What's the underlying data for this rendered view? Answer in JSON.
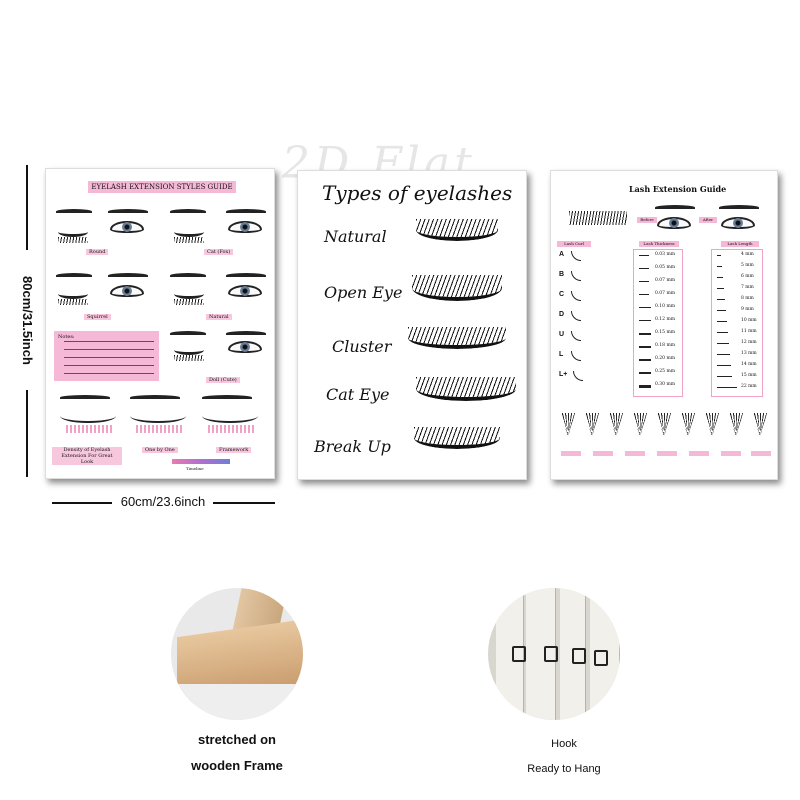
{
  "watermark": "2D Flat",
  "dimensions": {
    "height_label": "80cm/31.5inch",
    "width_label": "60cm/23.6inch"
  },
  "panel1": {
    "title": "EYELASH EXTENSION STYLES GUIDE",
    "styles": [
      "Round",
      "Cat (Fox)",
      "Squirrel",
      "Natural",
      "Doll (Cute)"
    ],
    "notes_label": "Notes:",
    "bottom_labels": [
      "Density of Eyelash Extension For Great Look",
      "One by One",
      "Framework"
    ],
    "timeline_label": "Timeline"
  },
  "panel2": {
    "title": "Types of eyelashes",
    "types": [
      "Natural",
      "Open Eye",
      "Cluster",
      "Cat Eye",
      "Break Up"
    ]
  },
  "panel3": {
    "title": "Lash Extension Guide",
    "before_label": "Before",
    "after_label": "After",
    "column_tags": [
      "Lash Curl",
      "Lash Thickness",
      "Lash Length"
    ],
    "curls": [
      "A",
      "B",
      "C",
      "D",
      "U",
      "L",
      "L+"
    ],
    "thickness": [
      "0.03 mm",
      "0.05 mm",
      "0.07 mm",
      "0.07 mm",
      "0.10 mm",
      "0.12 mm",
      "0.15 mm",
      "0.18 mm",
      "0.20 mm",
      "0.25 mm",
      "0.30 mm"
    ],
    "lengths": [
      "4 mm",
      "5 mm",
      "6 mm",
      "7 mm",
      "8 mm",
      "9 mm",
      "10 mm",
      "11 mm",
      "12 mm",
      "13 mm",
      "14 mm",
      "15 mm",
      "22 mm"
    ]
  },
  "features": [
    {
      "line1": "stretched on",
      "line2": "wooden Frame"
    },
    {
      "line1": "Hook",
      "line2": "Ready to Hang"
    }
  ]
}
